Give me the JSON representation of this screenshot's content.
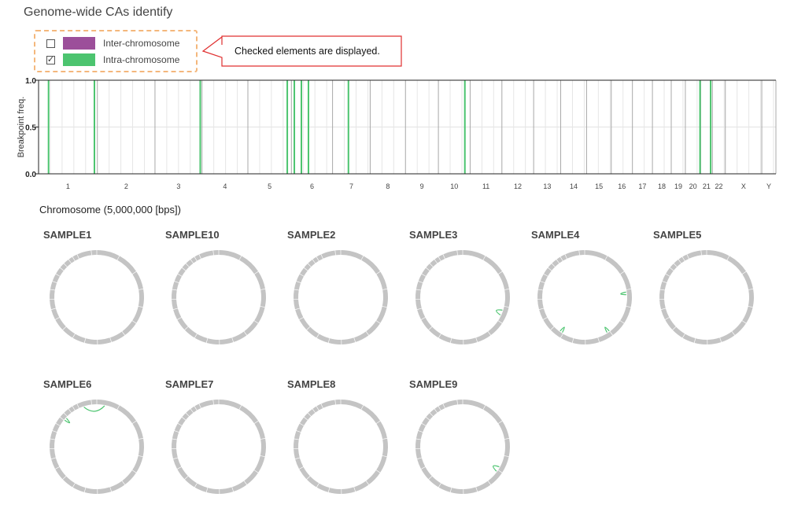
{
  "page_title": "Genome-wide CAs identify",
  "legend": {
    "items": [
      {
        "label": "Inter-chromosome",
        "checked": false,
        "color": "#9c4f9a"
      },
      {
        "label": "Intra-chromosome",
        "checked": true,
        "color": "#4cc46f"
      }
    ]
  },
  "callout": {
    "text": "Checked elements are displayed."
  },
  "chart_data": [
    {
      "type": "bar",
      "title": "",
      "ylabel": "Breakpoint freq.",
      "xlabel": "Chromosome (5,000,000 [bps])",
      "ylim": [
        0,
        1
      ],
      "yticks": [
        "0.0",
        "0.5",
        "1.0"
      ],
      "grid": true,
      "bin_size_bps": 5000000,
      "chromosomes": [
        {
          "name": "1",
          "bins": 50
        },
        {
          "name": "2",
          "bins": 49
        },
        {
          "name": "3",
          "bins": 40
        },
        {
          "name": "4",
          "bins": 39
        },
        {
          "name": "5",
          "bins": 37
        },
        {
          "name": "6",
          "bins": 35
        },
        {
          "name": "7",
          "bins": 32
        },
        {
          "name": "8",
          "bins": 30
        },
        {
          "name": "9",
          "bins": 28
        },
        {
          "name": "10",
          "bins": 27
        },
        {
          "name": "11",
          "bins": 27
        },
        {
          "name": "12",
          "bins": 27
        },
        {
          "name": "13",
          "bins": 23
        },
        {
          "name": "14",
          "bins": 22
        },
        {
          "name": "15",
          "bins": 21
        },
        {
          "name": "16",
          "bins": 18
        },
        {
          "name": "17",
          "bins": 17
        },
        {
          "name": "18",
          "bins": 16
        },
        {
          "name": "19",
          "bins": 12
        },
        {
          "name": "20",
          "bins": 13
        },
        {
          "name": "21",
          "bins": 10
        },
        {
          "name": "22",
          "bins": 11
        },
        {
          "name": "X",
          "bins": 31
        },
        {
          "name": "Y",
          "bins": 12
        }
      ],
      "series": [
        {
          "values_by_bin": [
            {
              "chromosome": "1",
              "bin": 8,
              "value": 1.0
            },
            {
              "chromosome": "1",
              "bin": 47,
              "value": 1.0
            },
            {
              "chromosome": "3",
              "bin": 38,
              "value": 1.0
            },
            {
              "chromosome": "5",
              "bin": 33,
              "value": 1.0
            },
            {
              "chromosome": "6",
              "bin": 2,
              "value": 1.0
            },
            {
              "chromosome": "6",
              "bin": 8,
              "value": 1.0
            },
            {
              "chromosome": "6",
              "bin": 14,
              "value": 1.0
            },
            {
              "chromosome": "7",
              "bin": 13,
              "value": 1.0
            },
            {
              "chromosome": "10",
              "bin": 22,
              "value": 1.0
            },
            {
              "chromosome": "20",
              "bin": 12,
              "value": 1.0
            },
            {
              "chromosome": "21",
              "bin": 8,
              "value": 1.0
            }
          ]
        }
      ]
    },
    {
      "type": "circos",
      "samples": [
        {
          "name": "SAMPLE1",
          "links": []
        },
        {
          "name": "SAMPLE10",
          "links": []
        },
        {
          "name": "SAMPLE2",
          "links": []
        },
        {
          "name": "SAMPLE3",
          "links": [
            {
              "from": 0.3,
              "to": 0.32
            }
          ]
        },
        {
          "name": "SAMPLE4",
          "links": [
            {
              "from": 0.23,
              "to": 0.24
            },
            {
              "from": 0.4,
              "to": 0.41
            },
            {
              "from": 0.59,
              "to": 0.6
            }
          ]
        },
        {
          "name": "SAMPLE5",
          "links": []
        },
        {
          "name": "SAMPLE6",
          "links": [
            {
              "from": 0.95,
              "to": 0.03
            },
            {
              "from": 0.86,
              "to": 0.87
            }
          ]
        },
        {
          "name": "SAMPLE7",
          "links": []
        },
        {
          "name": "SAMPLE8",
          "links": []
        },
        {
          "name": "SAMPLE9",
          "links": [
            {
              "from": 0.33,
              "to": 0.35
            }
          ]
        }
      ]
    }
  ]
}
